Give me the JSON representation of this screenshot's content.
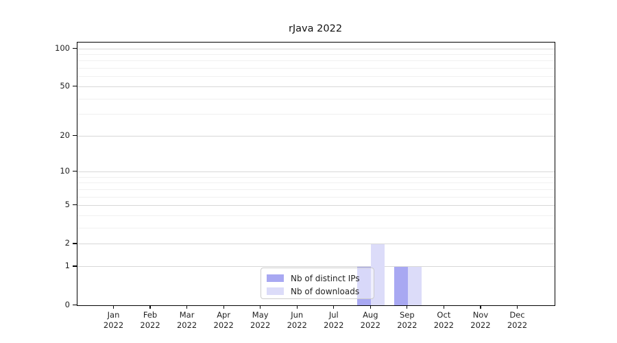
{
  "chart_data": {
    "type": "bar",
    "title": "rJava 2022",
    "year": "2022",
    "categories": [
      "Jan",
      "Feb",
      "Mar",
      "Apr",
      "May",
      "Jun",
      "Jul",
      "Aug",
      "Sep",
      "Oct",
      "Nov",
      "Dec"
    ],
    "series": [
      {
        "name": "Nb of distinct IPs",
        "color": "#a8a8f2",
        "values": [
          0,
          0,
          0,
          0,
          0,
          0,
          0,
          1,
          1,
          0,
          0,
          0
        ]
      },
      {
        "name": "Nb of downloads",
        "color": "#dcdcf9",
        "values": [
          0,
          0,
          0,
          0,
          0,
          0,
          0,
          2,
          1,
          0,
          0,
          0
        ]
      }
    ],
    "yscale": "log1p",
    "ylim": [
      0,
      110
    ],
    "y_major_ticks": [
      0,
      1,
      2,
      5,
      10,
      20,
      50,
      100
    ],
    "y_minor_gridlines": [
      3,
      4,
      6,
      7,
      8,
      9,
      30,
      40,
      60,
      70,
      80,
      90
    ],
    "grid": "horizontal-only",
    "legend_position": "lower-center-inside",
    "colors": {
      "major_grid": "#d7d7d7",
      "minor_grid": "#f0f0f0",
      "axis": "#000000",
      "text": "#1f1f1f",
      "background": "#ffffff"
    }
  }
}
